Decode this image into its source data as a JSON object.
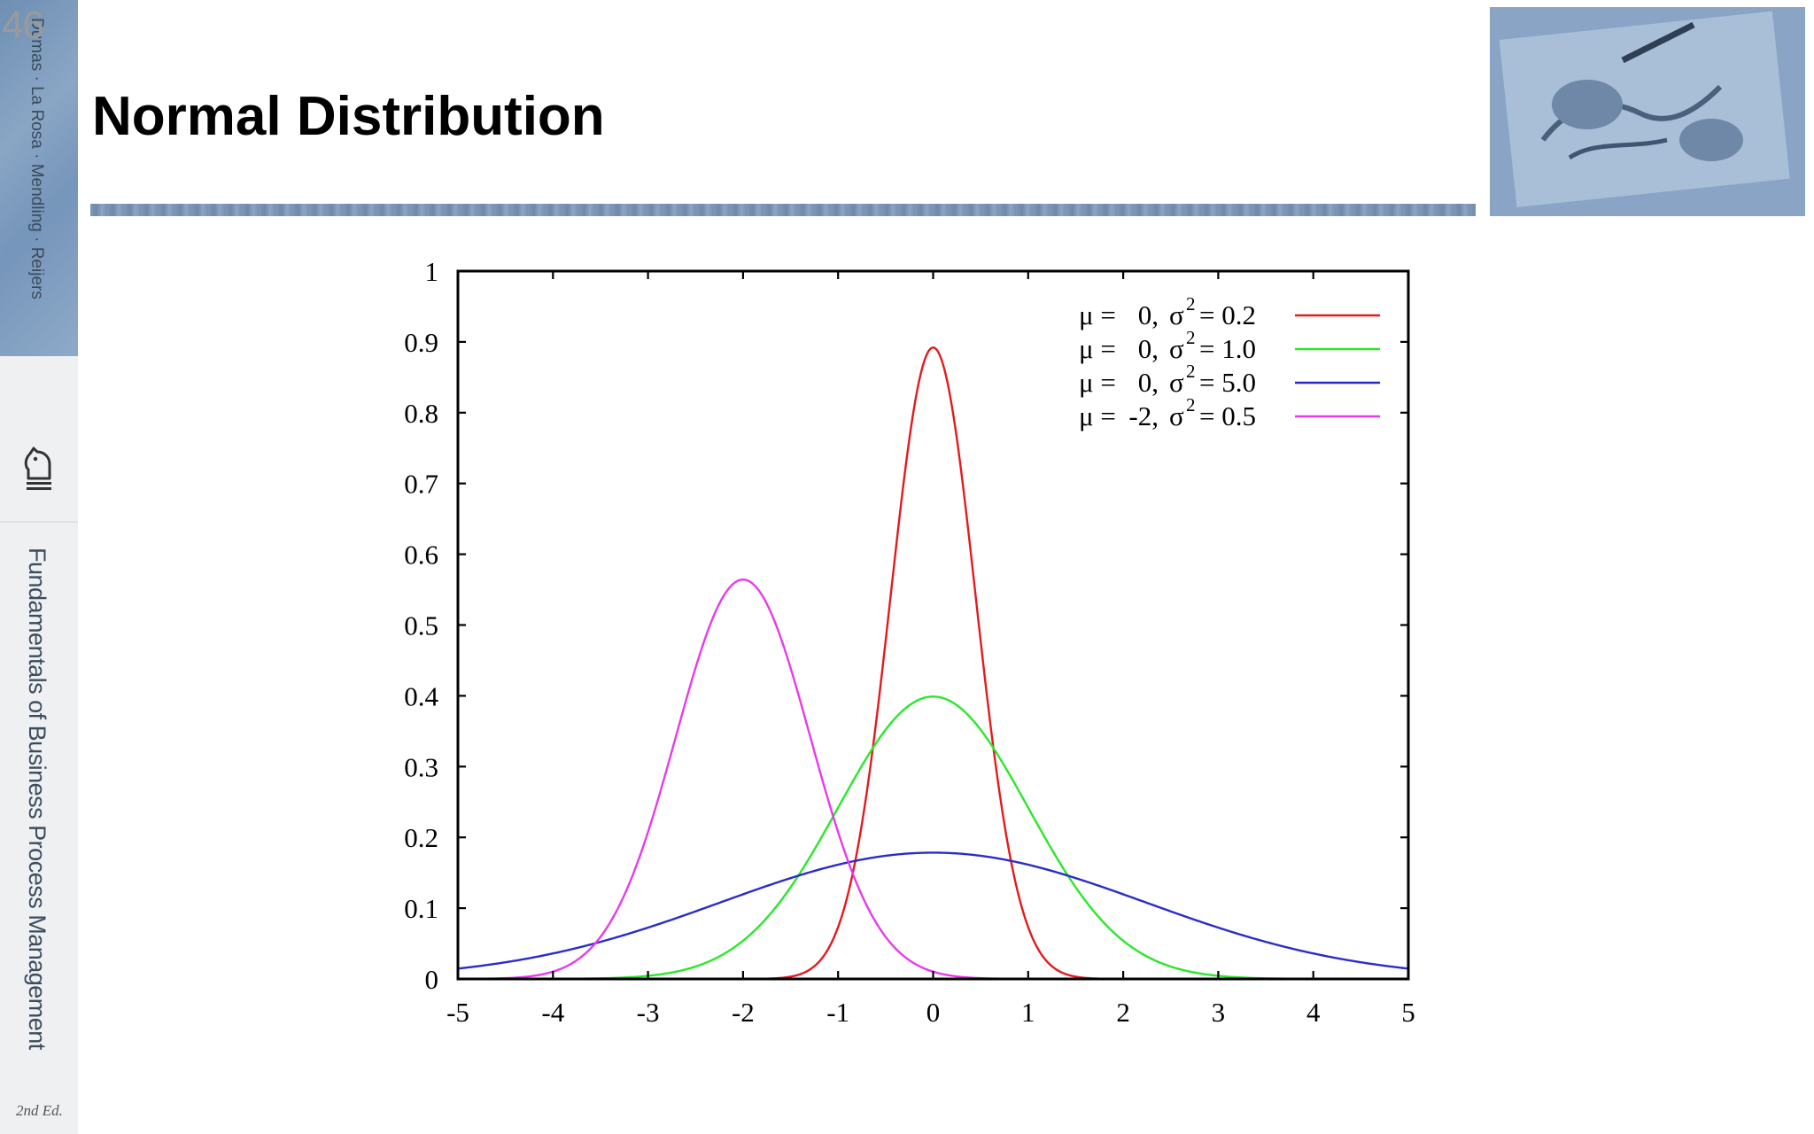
{
  "slide": {
    "number": "46",
    "title": "Normal Distribution",
    "sidebar_authors": "Dumas · La Rosa · Mendling · Reijers",
    "sidebar_book_title": "Fundamentals of Business Process Management",
    "sidebar_edition": "2nd Ed."
  },
  "icons": {
    "knight": "chess-knight-icon",
    "header_image": "drawing-hands-image"
  },
  "chart_data": {
    "type": "line",
    "title": "",
    "xlabel": "",
    "ylabel": "",
    "xlim": [
      -5,
      5
    ],
    "ylim": [
      0,
      1
    ],
    "xticks": [
      "-5",
      "-4",
      "-3",
      "-2",
      "-1",
      "0",
      "1",
      "2",
      "3",
      "4",
      "5"
    ],
    "yticks": [
      "0",
      "0.1",
      "0.2",
      "0.3",
      "0.4",
      "0.5",
      "0.6",
      "0.7",
      "0.8",
      "0.9",
      "1"
    ],
    "grid": false,
    "legend_position": "top-right",
    "series": [
      {
        "name": "μ =  0, σ² = 0.2",
        "mu": 0,
        "variance": 0.2,
        "color": "#e41a1c"
      },
      {
        "name": "μ =  0, σ² = 1.0",
        "mu": 0,
        "variance": 1.0,
        "color": "#2ae82a"
      },
      {
        "name": "μ =  0, σ² = 5.0",
        "mu": 0,
        "variance": 5.0,
        "color": "#2b2bcc"
      },
      {
        "name": "μ = -2, σ² = 0.5",
        "mu": -2,
        "variance": 0.5,
        "color": "#e83ae8"
      }
    ],
    "legend": [
      {
        "mu": "0",
        "var": "0.2"
      },
      {
        "mu": "0",
        "var": "1.0"
      },
      {
        "mu": "0",
        "var": "5.0"
      },
      {
        "mu": "-2",
        "var": "0.5"
      }
    ]
  }
}
